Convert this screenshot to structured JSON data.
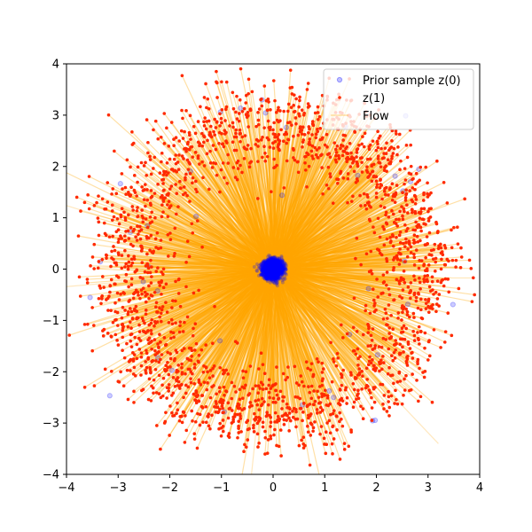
{
  "chart_data": {
    "type": "scatter",
    "title": "",
    "xlabel": "",
    "ylabel": "",
    "xlim": [
      -4,
      4
    ],
    "ylim": [
      -4,
      4
    ],
    "xticks": [
      -4,
      -3,
      -2,
      -1,
      0,
      1,
      2,
      3,
      4
    ],
    "yticks": [
      -4,
      -3,
      -2,
      -1,
      0,
      1,
      2,
      3,
      4
    ],
    "grid": false,
    "legend": {
      "placement": "top-right"
    },
    "series": [
      {
        "name": "Prior sample z(0)",
        "kind": "scatter",
        "color": "#0000ff",
        "description_points": "concentrated near origin, radius about 0.1"
      },
      {
        "name": "z(1)",
        "kind": "scatter",
        "color": "#ff2a00",
        "description_points": "ring distribution, radius about 2-3.8 around origin"
      },
      {
        "name": "Flow",
        "kind": "line",
        "color": "#ffa500",
        "description_points": "line segments from z(0) to z(1)"
      }
    ],
    "sample_points": [
      {
        "x": 0.0,
        "y": 0.0
      },
      {
        "x": 0.05,
        "y": 0.08
      },
      {
        "x": -0.06,
        "y": -0.03
      },
      {
        "x": -1.1,
        "y": 3.85
      },
      {
        "x": 3.9,
        "y": -0.5
      },
      {
        "x": 1.15,
        "y": -3.6
      },
      {
        "x": -3.8,
        "y": 1.4
      },
      {
        "x": 2.3,
        "y": 2.5
      },
      {
        "x": -3.5,
        "y": -0.75
      },
      {
        "x": -1.1,
        "y": 3.65
      },
      {
        "x": -2.1,
        "y": -3.0
      },
      {
        "x": -3.25,
        "y": -1.95
      }
    ]
  }
}
